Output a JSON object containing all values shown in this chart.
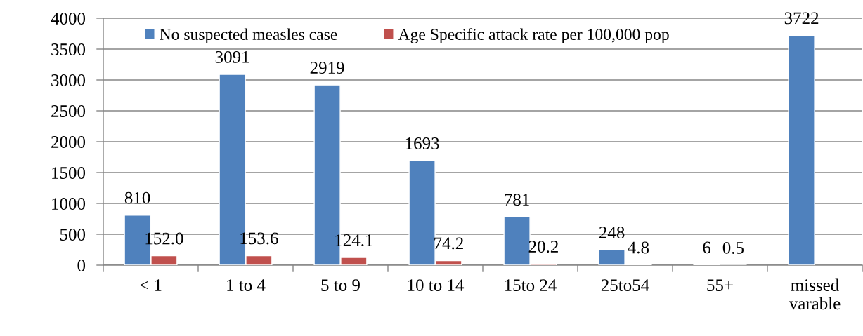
{
  "chart_data": {
    "type": "bar",
    "categories": [
      "< 1",
      "1 to 4",
      "5 to 9",
      "10 to 14",
      "15to 24",
      "25to54",
      "55+",
      "missed\nvarable"
    ],
    "series": [
      {
        "name": "No suspected measles case",
        "color": "#4f81bd",
        "values": [
          810,
          3091,
          2919,
          1693,
          781,
          248,
          6,
          3722
        ],
        "value_labels": [
          "810",
          "3091",
          "2919",
          "1693",
          "781",
          "248",
          "6",
          "3722"
        ]
      },
      {
        "name": "Age Specific attack rate per 100,000 pop",
        "color": "#c0504d",
        "values": [
          152.0,
          153.6,
          124.1,
          74.2,
          20.2,
          4.8,
          0.5,
          null
        ],
        "value_labels": [
          "152.0",
          "153.6",
          "124.1",
          "74.2",
          "20.2",
          "4.8",
          "0.5",
          null
        ]
      }
    ],
    "ylim": [
      0,
      4000
    ],
    "yticks": [
      0,
      500,
      1000,
      1500,
      2000,
      2500,
      3000,
      3500,
      4000
    ],
    "grid": "y",
    "legend": "top"
  }
}
